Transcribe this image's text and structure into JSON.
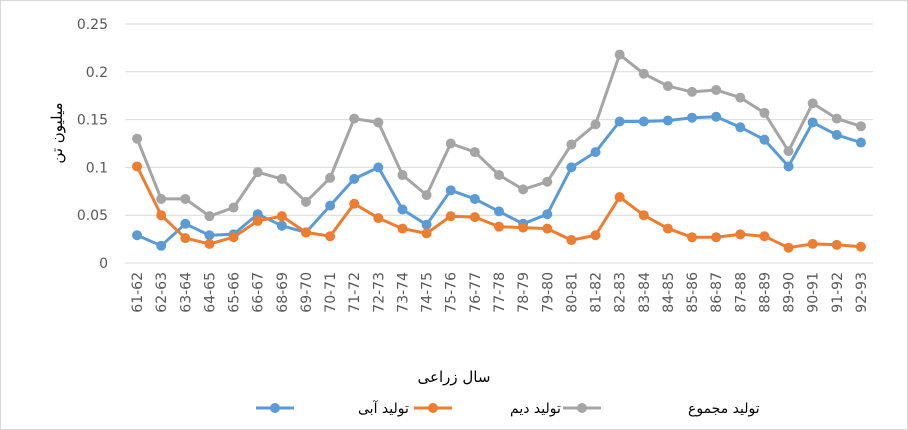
{
  "chart_data": {
    "type": "line",
    "title": "",
    "xlabel": "سال زراعی",
    "ylabel": "میلیون تن",
    "ylim": [
      0,
      0.25
    ],
    "yticks": [
      "0",
      "0.05",
      "0.1",
      "0.15",
      "0.2",
      "0.25"
    ],
    "grid": true,
    "legend_position": "bottom",
    "categories": [
      "61-62",
      "62-63",
      "63-64",
      "64-65",
      "65-66",
      "66-67",
      "68-69",
      "69-70",
      "70-71",
      "71-72",
      "72-73",
      "73-74",
      "74-75",
      "75-76",
      "76-77",
      "77-78",
      "78-79",
      "79-80",
      "80-81",
      "81-82",
      "82-83",
      "83-84",
      "84-85",
      "85-86",
      "86-87",
      "87-88",
      "88-89",
      "89-90",
      "90-91",
      "91-92",
      "92-93"
    ],
    "series": [
      {
        "name": "تولید آبی",
        "color": "#5b9bd5",
        "values": [
          0.029,
          0.018,
          0.041,
          0.029,
          0.03,
          0.051,
          0.039,
          0.032,
          0.06,
          0.088,
          0.1,
          0.056,
          0.04,
          0.076,
          0.067,
          0.054,
          0.041,
          0.051,
          0.1,
          0.116,
          0.148,
          0.148,
          0.149,
          0.152,
          0.153,
          0.142,
          0.129,
          0.101,
          0.147,
          0.134,
          0.126
        ]
      },
      {
        "name": "تولید دیم",
        "color": "#ed7d31",
        "values": [
          0.101,
          0.05,
          0.026,
          0.02,
          0.027,
          0.044,
          0.049,
          0.032,
          0.028,
          0.062,
          0.047,
          0.036,
          0.031,
          0.049,
          0.048,
          0.038,
          0.037,
          0.036,
          0.024,
          0.029,
          0.069,
          0.05,
          0.036,
          0.027,
          0.027,
          0.03,
          0.028,
          0.016,
          0.02,
          0.019,
          0.017
        ]
      },
      {
        "name": "تولید مجموع",
        "color": "#a5a5a5",
        "values": [
          0.13,
          0.067,
          0.067,
          0.049,
          0.058,
          0.095,
          0.088,
          0.064,
          0.089,
          0.151,
          0.147,
          0.092,
          0.071,
          0.125,
          0.116,
          0.092,
          0.077,
          0.085,
          0.124,
          0.145,
          0.218,
          0.198,
          0.185,
          0.179,
          0.181,
          0.173,
          0.157,
          0.117,
          0.167,
          0.151,
          0.143
        ]
      }
    ]
  }
}
